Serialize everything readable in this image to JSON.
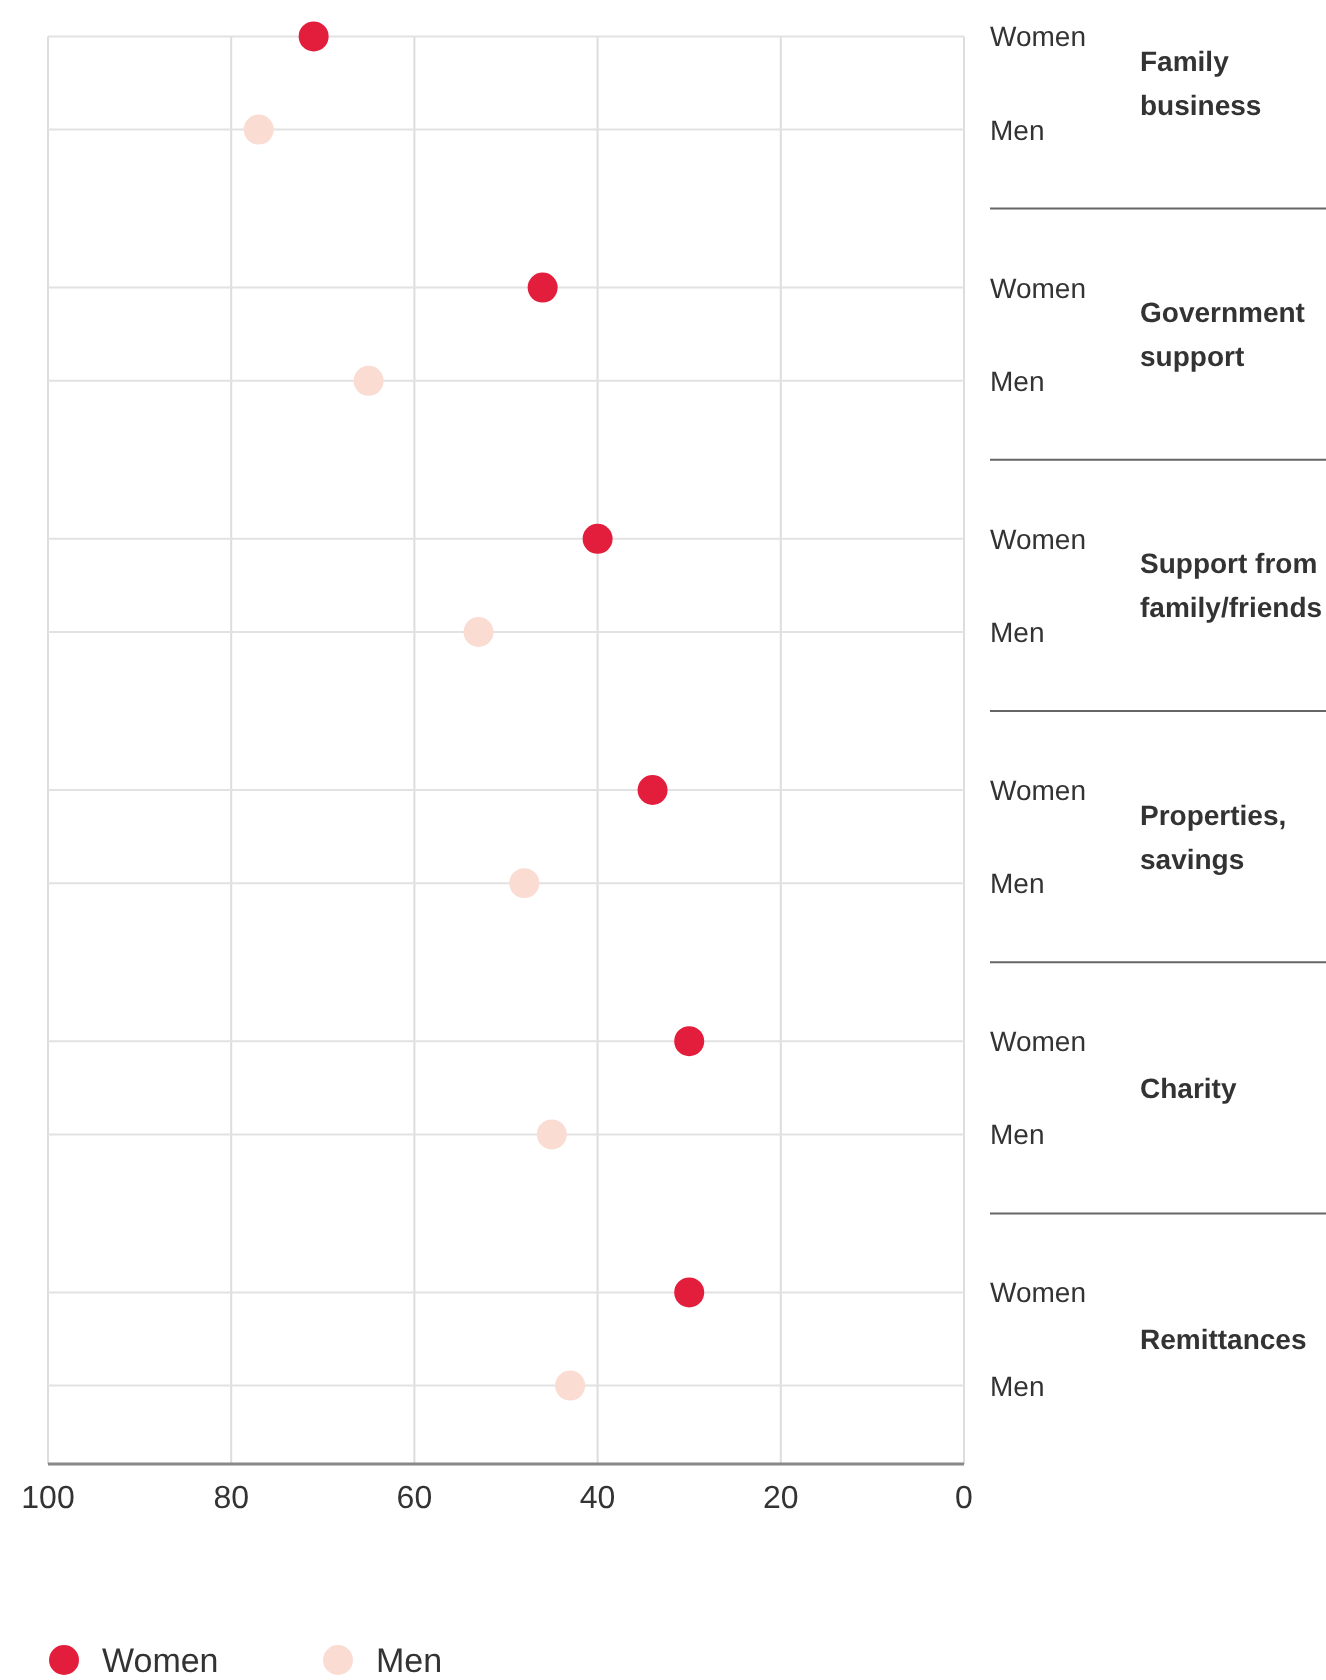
{
  "chart_data": {
    "type": "scatter",
    "orientation": "horizontal",
    "categories": [
      "Women",
      "Men",
      "Women",
      "Men",
      "Women",
      "Men",
      "Women",
      "Men",
      "Women",
      "Men",
      "Women",
      "Men"
    ],
    "series": [
      {
        "name": "Women",
        "color": "#e31d3c",
        "values": [
          71,
          null,
          46,
          null,
          40,
          null,
          34,
          null,
          30,
          null,
          30,
          null
        ]
      },
      {
        "name": "Men",
        "color": "#fadcd3",
        "values": [
          null,
          77,
          null,
          65,
          null,
          53,
          null,
          48,
          null,
          45,
          null,
          43
        ]
      }
    ],
    "annotations": [
      "Family business",
      "Government support",
      "Support from family/friends",
      "Properties, savings",
      "Charity",
      "Remittances"
    ],
    "xlim": [
      100,
      0
    ],
    "xticks": [
      100,
      80,
      60,
      40,
      20,
      0
    ],
    "grid": true,
    "legend": "bottom",
    "marker": "circle"
  }
}
